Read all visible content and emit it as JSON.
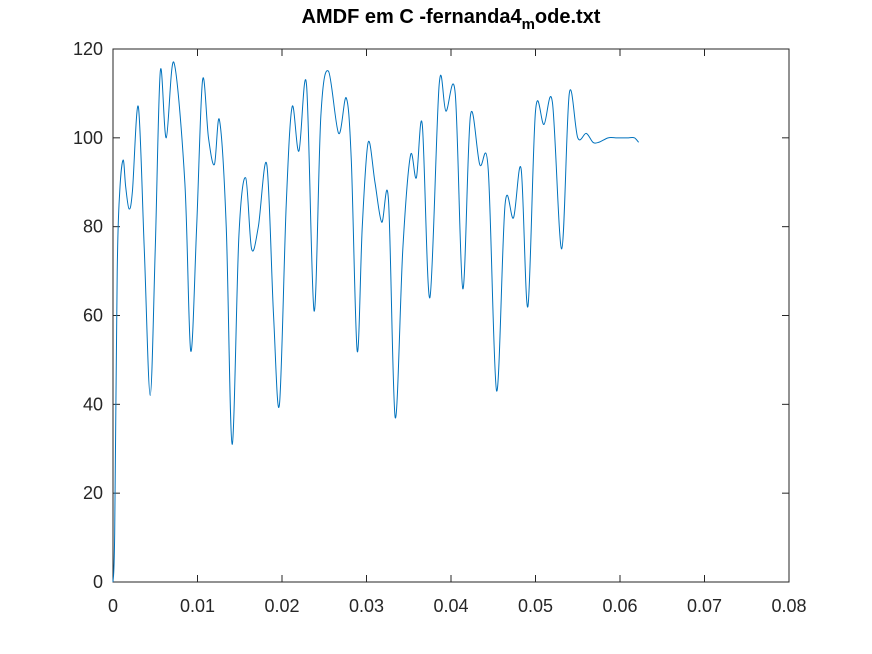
{
  "chart_data": {
    "type": "line",
    "title": "AMDF em C -fernanda4",
    "title_subscript": "m",
    "title_suffix": "ode.txt",
    "xlabel": "",
    "ylabel": "",
    "xlim": [
      0,
      0.08
    ],
    "ylim": [
      0,
      120
    ],
    "xticks": [
      0,
      0.01,
      0.02,
      0.03,
      0.04,
      0.05,
      0.06,
      0.07,
      0.08
    ],
    "xtick_labels": [
      "0",
      "0.01",
      "0.02",
      "0.03",
      "0.04",
      "0.05",
      "0.06",
      "0.07",
      "0.08"
    ],
    "yticks": [
      0,
      20,
      40,
      60,
      80,
      100,
      120
    ],
    "ytick_labels": [
      "0",
      "20",
      "40",
      "60",
      "80",
      "100",
      "120"
    ],
    "grid": false,
    "line_color": "#0072BD",
    "series": [
      {
        "x": [
          0,
          0.0002,
          0.0005,
          0.0008,
          0.0012,
          0.0015,
          0.0019,
          0.0023,
          0.003,
          0.0037,
          0.0044,
          0.005,
          0.0056,
          0.0063,
          0.0072,
          0.0085,
          0.0092,
          0.0099,
          0.0106,
          0.0113,
          0.012,
          0.0126,
          0.0134,
          0.0141,
          0.0149,
          0.0157,
          0.0164,
          0.0172,
          0.0182,
          0.019,
          0.0197,
          0.0205,
          0.0212,
          0.022,
          0.0229,
          0.0238,
          0.0246,
          0.0255,
          0.0267,
          0.0276,
          0.0282,
          0.0289,
          0.0295,
          0.0302,
          0.031,
          0.0318,
          0.0326,
          0.0334,
          0.0343,
          0.0352,
          0.0359,
          0.0366,
          0.0375,
          0.0386,
          0.0394,
          0.0405,
          0.0414,
          0.0423,
          0.0434,
          0.0444,
          0.0454,
          0.0464,
          0.0474,
          0.0483,
          0.0491,
          0.05,
          0.051,
          0.052,
          0.0531,
          0.054,
          0.055,
          0.056,
          0.0568,
          0.0575,
          0.0586,
          0.0595,
          0.0603,
          0.061,
          0.0617,
          0.0622
        ],
        "y": [
          0,
          11,
          70,
          88,
          95,
          89,
          84,
          88,
          107,
          75,
          42,
          75,
          115,
          100,
          117,
          90,
          52,
          80,
          113,
          100,
          94,
          104,
          80,
          31,
          78,
          91,
          75,
          80,
          94,
          60,
          40,
          85,
          107,
          97,
          112,
          61,
          105,
          115,
          101,
          109,
          95,
          52,
          80,
          99,
          90,
          81,
          86,
          37,
          75,
          96,
          91,
          103,
          64,
          112,
          106,
          110,
          66,
          105,
          94,
          93,
          43,
          85,
          82,
          93,
          62,
          106,
          103,
          108,
          75,
          110,
          100,
          101,
          99,
          99,
          100,
          100,
          100,
          100,
          100,
          99
        ]
      }
    ]
  }
}
